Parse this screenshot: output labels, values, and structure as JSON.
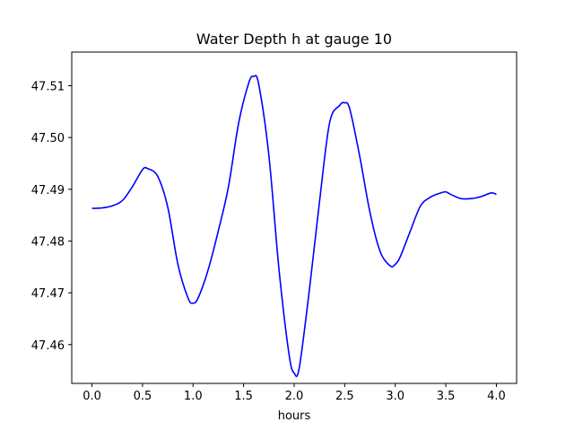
{
  "chart_data": {
    "type": "line",
    "title": "Water Depth h at gauge 10",
    "xlabel": "hours",
    "ylabel": "",
    "xlim": [
      -0.2,
      4.2
    ],
    "ylim": [
      47.4525,
      47.5165
    ],
    "xticks": [
      0.0,
      0.5,
      1.0,
      1.5,
      2.0,
      2.5,
      3.0,
      3.5,
      4.0
    ],
    "xtick_labels": [
      "0.0",
      "0.5",
      "1.0",
      "1.5",
      "2.0",
      "2.5",
      "3.0",
      "3.5",
      "4.0"
    ],
    "yticks": [
      47.46,
      47.47,
      47.48,
      47.49,
      47.5,
      47.51
    ],
    "ytick_labels": [
      "47.46",
      "47.47",
      "47.48",
      "47.49",
      "47.50",
      "47.51"
    ],
    "grid": false,
    "series": [
      {
        "color": "#0000ff",
        "x": [
          0.0,
          0.1,
          0.2,
          0.3,
          0.4,
          0.5,
          0.55,
          0.65,
          0.75,
          0.85,
          0.95,
          1.0,
          1.05,
          1.15,
          1.25,
          1.35,
          1.45,
          1.55,
          1.6,
          1.65,
          1.75,
          1.85,
          1.95,
          2.0,
          2.05,
          2.15,
          2.25,
          2.35,
          2.45,
          2.5,
          2.55,
          2.65,
          2.75,
          2.85,
          2.95,
          3.0,
          3.05,
          3.15,
          3.25,
          3.35,
          3.45,
          3.5,
          3.55,
          3.65,
          3.75,
          3.85,
          3.95,
          4.0
        ],
        "y": [
          47.4863,
          47.4864,
          47.4868,
          47.4878,
          47.4905,
          47.4938,
          47.494,
          47.4925,
          47.4865,
          47.4755,
          47.469,
          47.468,
          47.469,
          47.4745,
          47.482,
          47.4905,
          47.5027,
          47.5105,
          47.5118,
          47.5102,
          47.4965,
          47.4745,
          47.458,
          47.4545,
          47.4555,
          47.4705,
          47.4875,
          47.5028,
          47.5062,
          47.5067,
          47.5055,
          47.4962,
          47.4855,
          47.478,
          47.4752,
          47.4755,
          47.477,
          47.482,
          47.4868,
          47.4885,
          47.4893,
          47.4895,
          47.489,
          47.4882,
          47.4882,
          47.4886,
          47.4893,
          47.489
        ]
      }
    ]
  }
}
